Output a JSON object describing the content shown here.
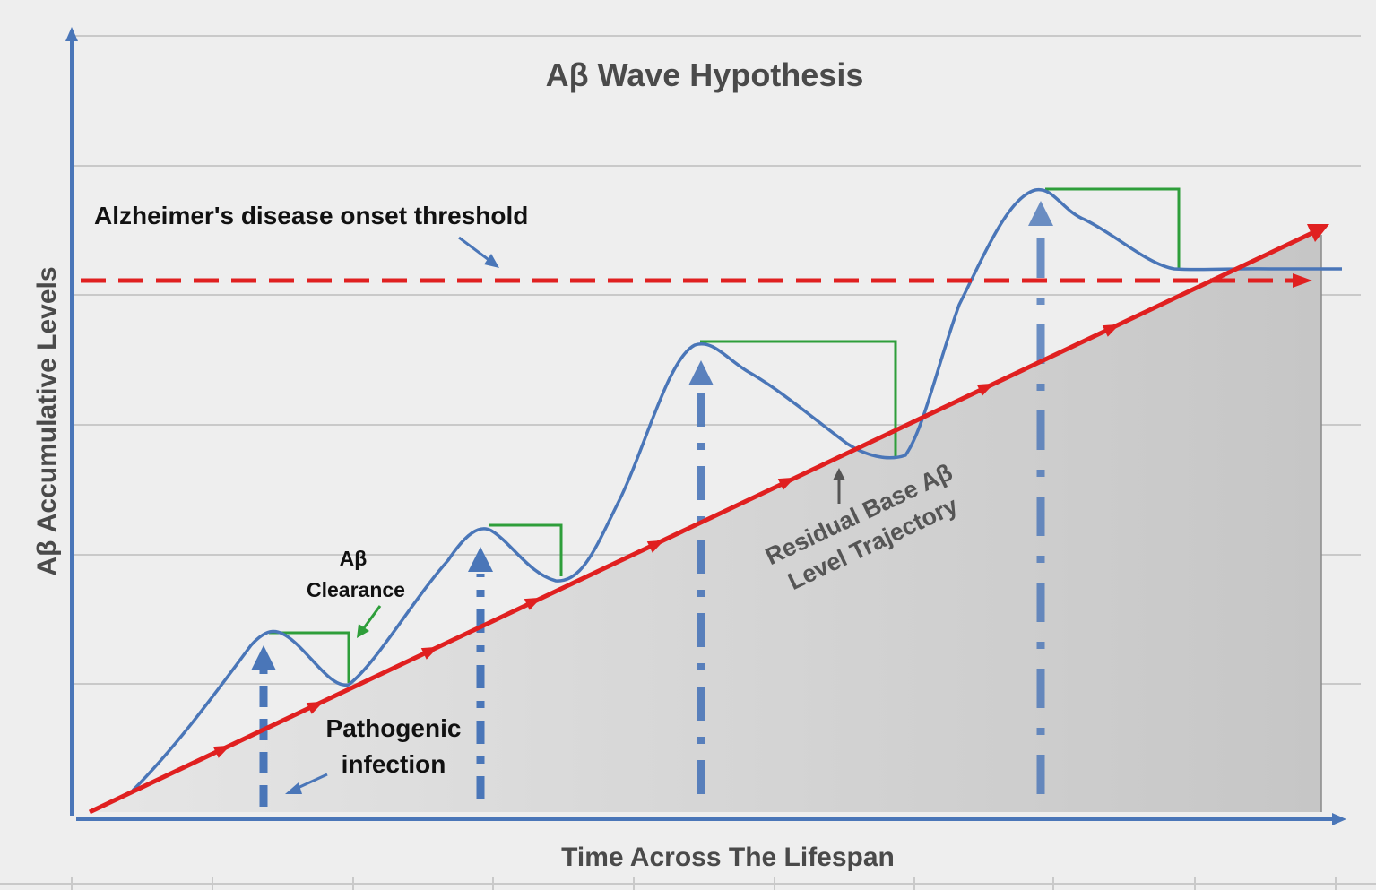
{
  "title": "Aβ Wave Hypothesis",
  "x_axis_label": "Time Across The Lifespan",
  "y_axis_label": "Aβ Accumulative Levels",
  "threshold_label": "Alzheimer's disease onset threshold",
  "clearance_label": [
    "Aβ",
    "Clearance"
  ],
  "infection_label": [
    "Pathogenic",
    "infection"
  ],
  "residual_label": [
    "Residual Base Aβ",
    "Level Trajectory"
  ],
  "colors": {
    "background": "#eeeeee",
    "axis": "#4a76b8",
    "grid": "#c9c9c9",
    "wave": "#4a76b8",
    "baseline": "#e02020",
    "threshold": "#e02020",
    "clearance": "#2e9e3a",
    "shaded_area": "#cdcdcd"
  }
}
